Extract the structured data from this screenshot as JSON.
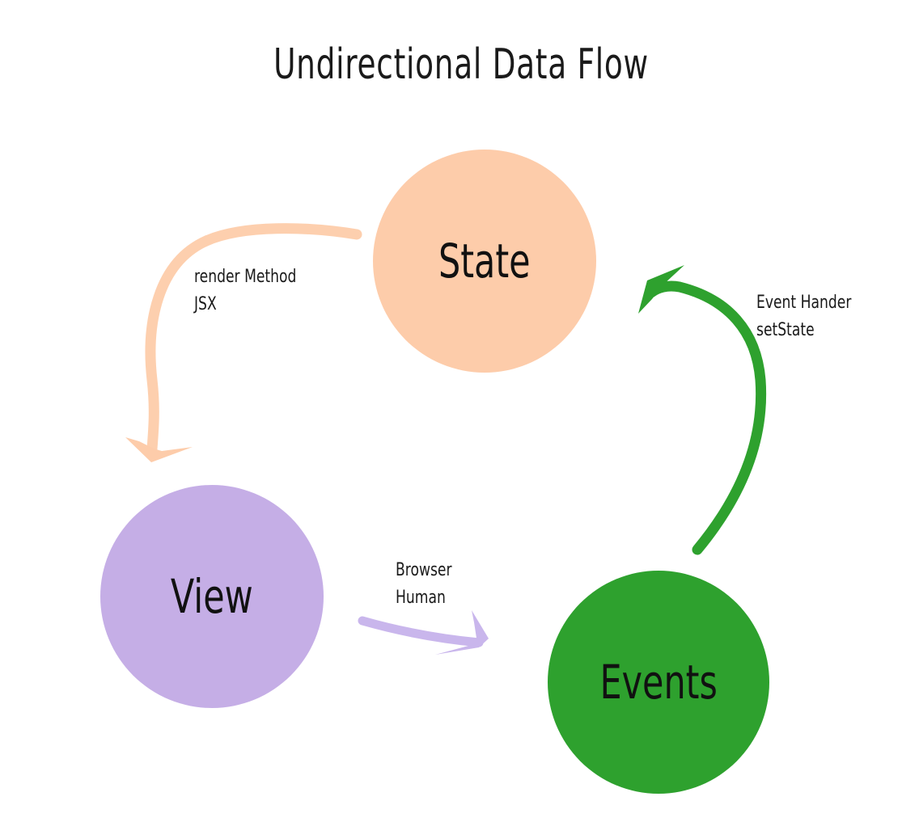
{
  "title": "Undirectional Data Flow",
  "nodes": {
    "state": {
      "label": "State",
      "color": "#fdccaa"
    },
    "view": {
      "label": "View",
      "color": "#c5aee6"
    },
    "events": {
      "label": "Events",
      "color": "#2ea12e"
    }
  },
  "edges": {
    "state_to_view": {
      "line1": "render Method",
      "line2": "JSX",
      "color": "#fdccaa"
    },
    "view_to_events": {
      "line1": "Browser",
      "line2": "Human",
      "color": "#c9b6ec"
    },
    "events_to_state": {
      "line1": "Event Hander",
      "line2": "setState",
      "color": "#2ea12e"
    }
  }
}
